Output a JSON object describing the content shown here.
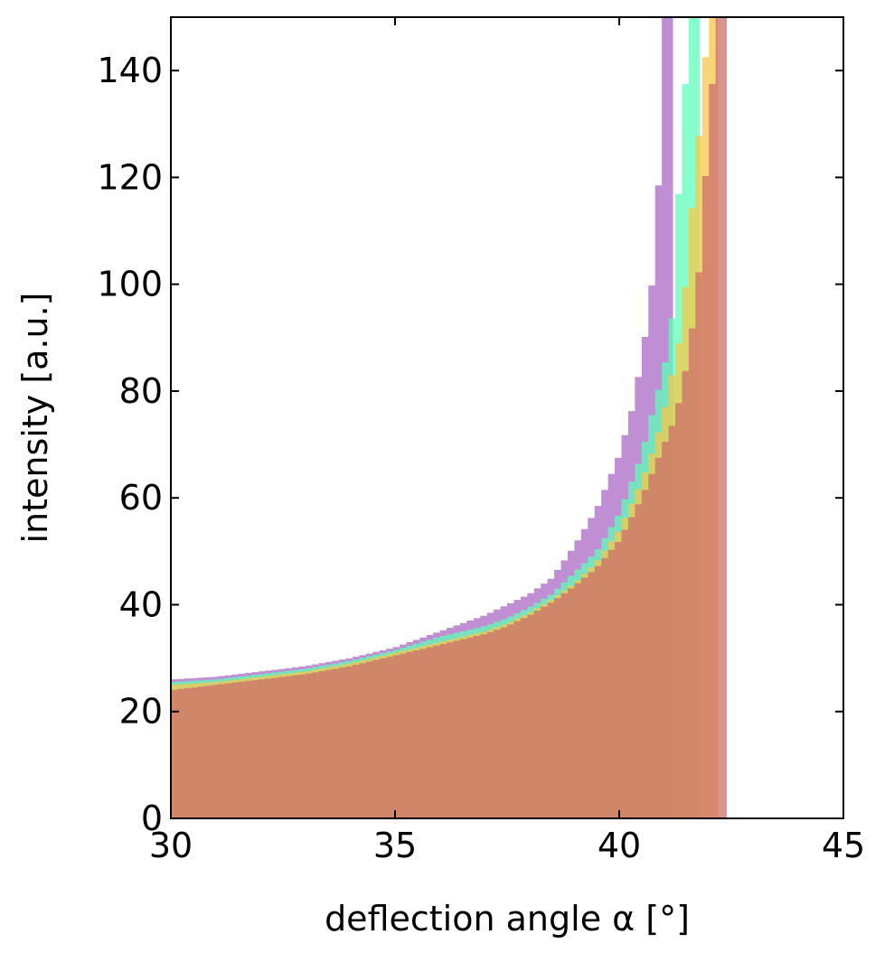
{
  "chart_data": {
    "type": "area",
    "title": "",
    "xlabel": "deflection angle α [°]",
    "ylabel": "intensity [a.u.]",
    "xlim": [
      30,
      45
    ],
    "ylim": [
      0,
      150
    ],
    "xticks": [
      30,
      35,
      40,
      45
    ],
    "yticks": [
      0,
      20,
      40,
      60,
      80,
      100,
      120,
      140
    ],
    "grid": false,
    "legend": "none",
    "bin_width": 0.15,
    "series": [
      {
        "color": "#a968c4",
        "cutoff": 41.2,
        "x": [
          30,
          31,
          32,
          33,
          34,
          35,
          36,
          37,
          37.5,
          38,
          38.5,
          39,
          39.5,
          40,
          40.3,
          40.5,
          40.7,
          40.8,
          40.9,
          41.0,
          41.2
        ],
        "y": [
          26,
          26.5,
          27.5,
          28.5,
          30,
          32,
          35,
          38,
          40,
          42,
          45,
          51,
          58,
          68,
          77,
          86,
          97,
          108,
          122,
          150,
          150
        ]
      },
      {
        "color": "#5ffdba",
        "cutoff": 41.8,
        "x": [
          30,
          31,
          32,
          33,
          34,
          35,
          36,
          37,
          37.5,
          38,
          38.5,
          39,
          39.5,
          40,
          40.5,
          40.8,
          41.0,
          41.2,
          41.4,
          41.6,
          41.8
        ],
        "y": [
          25.5,
          26,
          27,
          28,
          29.5,
          31.5,
          34,
          36,
          37.5,
          39.5,
          42,
          46,
          50,
          57,
          68,
          78,
          84,
          95,
          130,
          150,
          150
        ]
      },
      {
        "color": "#f5c84a",
        "cutoff": 42.2,
        "x": [
          30,
          31,
          32,
          33,
          34,
          35,
          36,
          37,
          37.5,
          38,
          38.5,
          39,
          39.5,
          40,
          40.5,
          40.8,
          41.0,
          41.2,
          41.4,
          41.6,
          41.8,
          42.0,
          42.2
        ],
        "y": [
          25,
          25.5,
          26.5,
          27.5,
          29,
          31,
          33,
          35,
          36.5,
          38.5,
          41,
          44,
          48,
          54,
          63,
          70,
          76,
          84,
          92,
          112,
          130,
          150,
          150
        ]
      },
      {
        "color": "#cd6f6a",
        "cutoff": 42.4,
        "x": [
          30,
          31,
          32,
          33,
          34,
          35,
          36,
          37,
          37.5,
          38,
          38.5,
          39,
          39.5,
          40,
          40.5,
          40.8,
          41.0,
          41.2,
          41.4,
          41.6,
          41.8,
          42.0,
          42.2,
          42.4
        ],
        "y": [
          24,
          25,
          26,
          27,
          28.5,
          30.5,
          32.5,
          34.5,
          36,
          38,
          40.5,
          43.5,
          47,
          52,
          60,
          66,
          70,
          74,
          80,
          90,
          104,
          130,
          150,
          150
        ]
      }
    ]
  }
}
